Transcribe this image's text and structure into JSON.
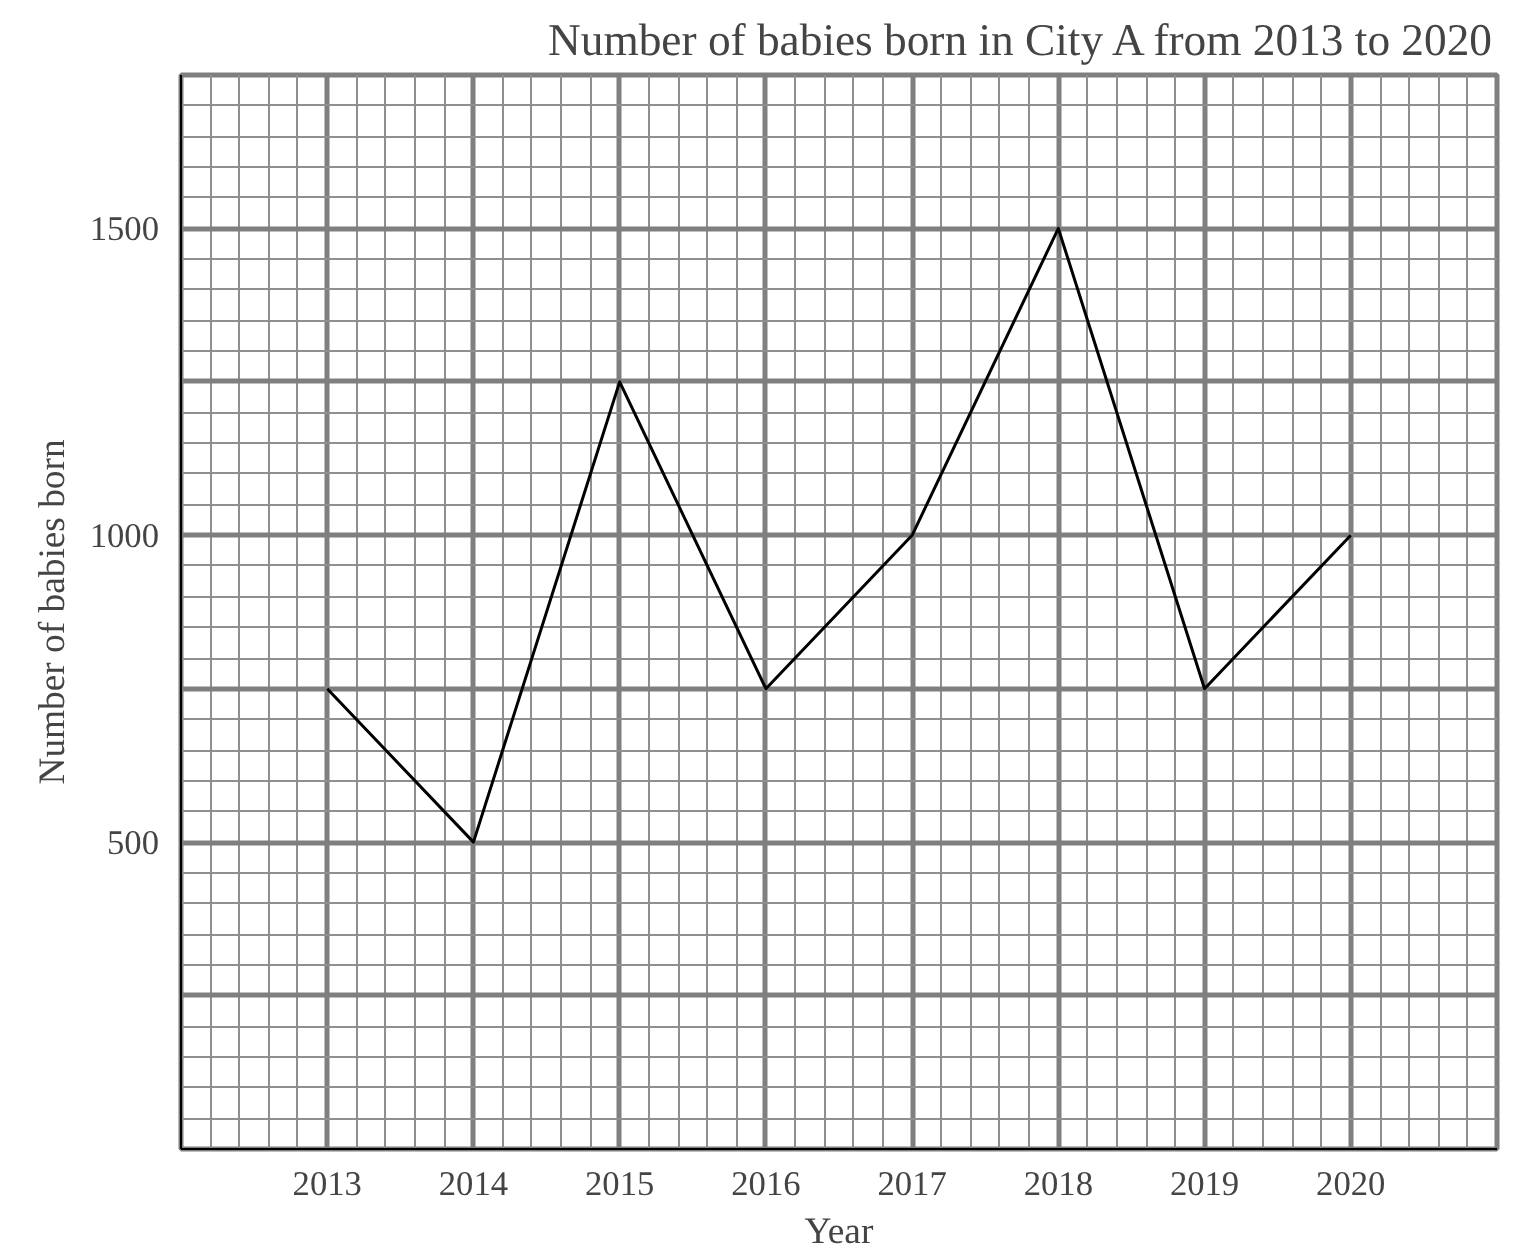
{
  "chart_data": {
    "type": "line",
    "title": "Number of babies born in City A from 2013 to 2020",
    "xlabel": "Year",
    "ylabel": "Number of babies born",
    "x": [
      2013,
      2014,
      2015,
      2016,
      2017,
      2018,
      2019,
      2020
    ],
    "series": [
      {
        "color": "#000000",
        "values": [
          750,
          500,
          1250,
          750,
          1000,
          1500,
          750,
          1000
        ]
      }
    ],
    "xlim": [
      2012,
      2021
    ],
    "xticks": [
      {
        "value": 2012,
        "label": null
      },
      2013,
      2014,
      2015,
      2016,
      2017,
      2018,
      2019,
      2020,
      {
        "value": 2021,
        "label": null
      }
    ],
    "ylim": [
      0,
      1750
    ],
    "yticks": [
      {
        "value": 0,
        "label": null
      },
      {
        "value": 250,
        "label": null
      },
      500,
      {
        "value": 750,
        "label": null
      },
      1000,
      {
        "value": 1250,
        "label": null
      },
      1500,
      {
        "value": 1750,
        "label": null
      }
    ],
    "grid": true,
    "marker": "none",
    "line_style": "solid"
  }
}
